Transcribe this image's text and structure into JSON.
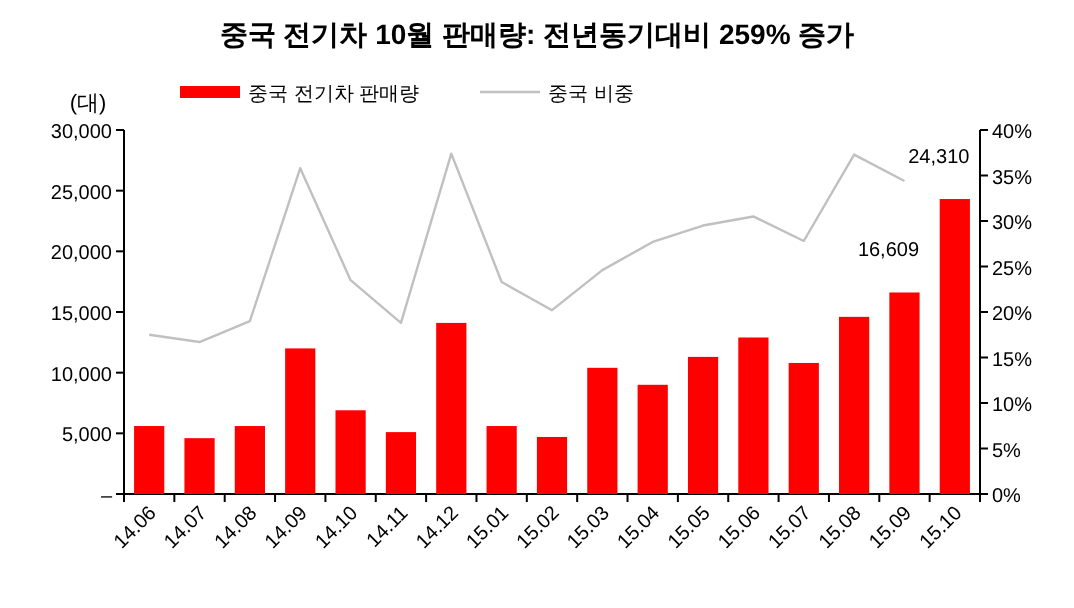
{
  "chart_data": {
    "type": "bar",
    "title": "중국 전기차 10월 판매량: 전년동기대비 259% 증가",
    "ylabel": "(대)",
    "categories": [
      "14.06",
      "14.07",
      "14.08",
      "14.09",
      "14.10",
      "14.11",
      "14.12",
      "15.01",
      "15.02",
      "15.03",
      "15.04",
      "15.05",
      "15.06",
      "15.07",
      "15.08",
      "15.09",
      "15.10"
    ],
    "series": [
      {
        "name": "중국 전기차 판매량",
        "color": "#ff0000",
        "values": [
          5600,
          4600,
          5600,
          12000,
          6900,
          5100,
          14100,
          5600,
          4700,
          10400,
          9000,
          11300,
          12900,
          10800,
          14600,
          16609,
          24310
        ],
        "value_labels": [
          null,
          null,
          null,
          null,
          null,
          null,
          null,
          null,
          null,
          null,
          null,
          null,
          null,
          null,
          null,
          "16,609",
          "24,310"
        ]
      },
      {
        "name": "중국 비중",
        "type": "line",
        "axis": "y2",
        "color": "#c0c0c0",
        "values": [
          17.5,
          16.7,
          19,
          35.8,
          23.5,
          18.8,
          37.4,
          23.3,
          20.2,
          24.6,
          27.7,
          29.5,
          30.5,
          27.8,
          37.3,
          34.4,
          null
        ]
      }
    ],
    "ylim": [
      0,
      30000
    ],
    "yticks": [
      {
        "value": 0,
        "label": "–"
      },
      {
        "value": 5000,
        "label": "5,000"
      },
      {
        "value": 10000,
        "label": "10,000"
      },
      {
        "value": 15000,
        "label": "15,000"
      },
      {
        "value": 20000,
        "label": "20,000"
      },
      {
        "value": 25000,
        "label": "25,000"
      },
      {
        "value": 30000,
        "label": "30,000"
      }
    ],
    "y2lim": [
      0,
      40
    ],
    "y2ticks": [
      {
        "value": 0,
        "label": "0%"
      },
      {
        "value": 5,
        "label": "5%"
      },
      {
        "value": 10,
        "label": "10%"
      },
      {
        "value": 15,
        "label": "15%"
      },
      {
        "value": 20,
        "label": "20%"
      },
      {
        "value": 25,
        "label": "25%"
      },
      {
        "value": 30,
        "label": "30%"
      },
      {
        "value": 35,
        "label": "35%"
      },
      {
        "value": 40,
        "label": "40%"
      }
    ],
    "legend": "top",
    "grid": false
  }
}
